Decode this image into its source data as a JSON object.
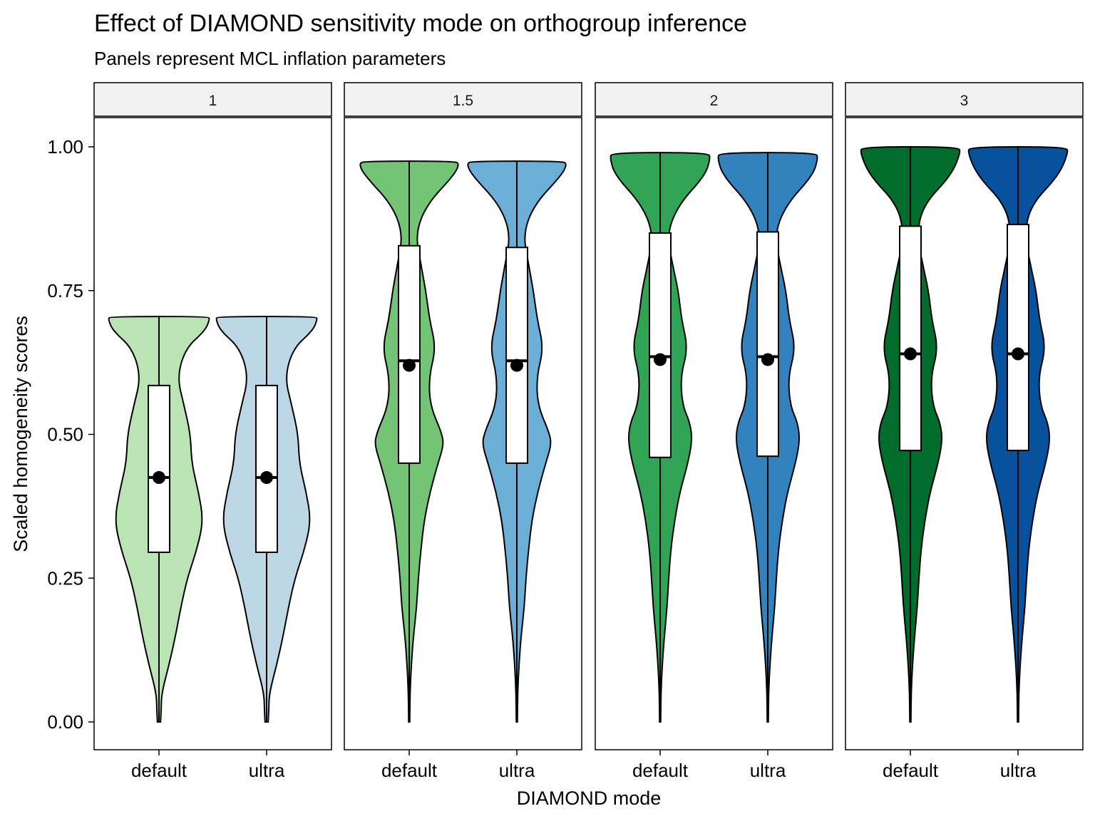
{
  "chart_data": {
    "type": "violin",
    "title": "Effect of DIAMOND sensitivity mode on orthogroup inference",
    "subtitle": "Panels represent MCL inflation parameters",
    "xlabel": "DIAMOND mode",
    "ylabel": "Scaled homogeneity scores",
    "categories": [
      "default",
      "ultra"
    ],
    "ylim": [
      -0.05,
      1.08
    ],
    "yticks": [
      0,
      0.25,
      0.5,
      0.75,
      1
    ],
    "ytick_labels": [
      "0.00",
      "0.25",
      "0.50",
      "0.75",
      "1.00"
    ],
    "grid": false,
    "legend": "none",
    "panels": [
      {
        "label": "1",
        "groups": [
          {
            "category": "default",
            "color": "#bae4b3",
            "min": 0.0,
            "max": 0.705,
            "q1": 0.295,
            "median": 0.425,
            "q3": 0.585,
            "mean": 0.425,
            "density": [
              [
                0.0,
                0.03
              ],
              [
                0.02,
                0.04
              ],
              [
                0.05,
                0.05
              ],
              [
                0.1,
                0.19
              ],
              [
                0.15,
                0.31
              ],
              [
                0.2,
                0.41
              ],
              [
                0.25,
                0.53
              ],
              [
                0.3,
                0.71
              ],
              [
                0.35,
                0.83
              ],
              [
                0.4,
                0.74
              ],
              [
                0.45,
                0.61
              ],
              [
                0.5,
                0.59
              ],
              [
                0.55,
                0.47
              ],
              [
                0.6,
                0.34
              ],
              [
                0.65,
                0.5
              ],
              [
                0.68,
                0.86
              ],
              [
                0.7,
                0.95
              ],
              [
                0.705,
                0.92
              ]
            ]
          },
          {
            "category": "ultra",
            "color": "#bdd7e7",
            "min": 0.0,
            "max": 0.705,
            "q1": 0.295,
            "median": 0.425,
            "q3": 0.585,
            "mean": 0.425,
            "density": [
              [
                0.0,
                0.03
              ],
              [
                0.02,
                0.04
              ],
              [
                0.05,
                0.05
              ],
              [
                0.1,
                0.19
              ],
              [
                0.15,
                0.31
              ],
              [
                0.2,
                0.41
              ],
              [
                0.25,
                0.53
              ],
              [
                0.3,
                0.71
              ],
              [
                0.35,
                0.83
              ],
              [
                0.4,
                0.74
              ],
              [
                0.45,
                0.61
              ],
              [
                0.5,
                0.59
              ],
              [
                0.55,
                0.47
              ],
              [
                0.6,
                0.34
              ],
              [
                0.65,
                0.5
              ],
              [
                0.68,
                0.86
              ],
              [
                0.7,
                0.95
              ],
              [
                0.705,
                0.92
              ]
            ]
          }
        ]
      },
      {
        "label": "1.5",
        "groups": [
          {
            "category": "default",
            "color": "#74c476",
            "min": 0.0,
            "max": 0.975,
            "q1": 0.45,
            "median": 0.628,
            "q3": 0.828,
            "mean": 0.62,
            "density": [
              [
                0.0,
                0.01
              ],
              [
                0.05,
                0.015
              ],
              [
                0.1,
                0.04
              ],
              [
                0.15,
                0.08
              ],
              [
                0.2,
                0.14
              ],
              [
                0.25,
                0.17
              ],
              [
                0.3,
                0.22
              ],
              [
                0.35,
                0.28
              ],
              [
                0.4,
                0.39
              ],
              [
                0.45,
                0.54
              ],
              [
                0.48,
                0.64
              ],
              [
                0.5,
                0.62
              ],
              [
                0.55,
                0.39
              ],
              [
                0.6,
                0.37
              ],
              [
                0.65,
                0.5
              ],
              [
                0.7,
                0.38
              ],
              [
                0.75,
                0.31
              ],
              [
                0.8,
                0.21
              ],
              [
                0.85,
                0.12
              ],
              [
                0.9,
                0.33
              ],
              [
                0.95,
                0.83
              ],
              [
                0.97,
                0.94
              ],
              [
                0.975,
                0.85
              ]
            ]
          },
          {
            "category": "ultra",
            "color": "#6baed6",
            "min": 0.0,
            "max": 0.975,
            "q1": 0.45,
            "median": 0.628,
            "q3": 0.825,
            "mean": 0.62,
            "density": [
              [
                0.0,
                0.01
              ],
              [
                0.05,
                0.015
              ],
              [
                0.1,
                0.04
              ],
              [
                0.15,
                0.08
              ],
              [
                0.2,
                0.14
              ],
              [
                0.25,
                0.17
              ],
              [
                0.3,
                0.22
              ],
              [
                0.35,
                0.28
              ],
              [
                0.4,
                0.39
              ],
              [
                0.45,
                0.54
              ],
              [
                0.48,
                0.64
              ],
              [
                0.5,
                0.62
              ],
              [
                0.55,
                0.39
              ],
              [
                0.6,
                0.37
              ],
              [
                0.65,
                0.5
              ],
              [
                0.7,
                0.38
              ],
              [
                0.75,
                0.31
              ],
              [
                0.8,
                0.21
              ],
              [
                0.85,
                0.12
              ],
              [
                0.9,
                0.33
              ],
              [
                0.95,
                0.83
              ],
              [
                0.97,
                0.94
              ],
              [
                0.975,
                0.85
              ]
            ]
          }
        ]
      },
      {
        "label": "2",
        "groups": [
          {
            "category": "default",
            "color": "#31a354",
            "min": 0.0,
            "max": 0.99,
            "q1": 0.46,
            "median": 0.635,
            "q3": 0.85,
            "mean": 0.63,
            "density": [
              [
                0.0,
                0.01
              ],
              [
                0.05,
                0.015
              ],
              [
                0.1,
                0.04
              ],
              [
                0.15,
                0.08
              ],
              [
                0.2,
                0.13
              ],
              [
                0.25,
                0.16
              ],
              [
                0.3,
                0.2
              ],
              [
                0.35,
                0.27
              ],
              [
                0.4,
                0.37
              ],
              [
                0.45,
                0.52
              ],
              [
                0.49,
                0.6
              ],
              [
                0.52,
                0.56
              ],
              [
                0.55,
                0.42
              ],
              [
                0.6,
                0.38
              ],
              [
                0.65,
                0.52
              ],
              [
                0.7,
                0.4
              ],
              [
                0.75,
                0.34
              ],
              [
                0.8,
                0.22
              ],
              [
                0.85,
                0.13
              ],
              [
                0.9,
                0.35
              ],
              [
                0.95,
                0.84
              ],
              [
                0.98,
                0.94
              ],
              [
                0.99,
                0.9
              ]
            ]
          },
          {
            "category": "ultra",
            "color": "#3182bd",
            "min": 0.0,
            "max": 0.99,
            "q1": 0.462,
            "median": 0.635,
            "q3": 0.852,
            "mean": 0.63,
            "density": [
              [
                0.0,
                0.01
              ],
              [
                0.05,
                0.015
              ],
              [
                0.1,
                0.04
              ],
              [
                0.15,
                0.08
              ],
              [
                0.2,
                0.13
              ],
              [
                0.25,
                0.16
              ],
              [
                0.3,
                0.2
              ],
              [
                0.35,
                0.27
              ],
              [
                0.4,
                0.37
              ],
              [
                0.45,
                0.52
              ],
              [
                0.49,
                0.6
              ],
              [
                0.52,
                0.56
              ],
              [
                0.55,
                0.42
              ],
              [
                0.6,
                0.38
              ],
              [
                0.65,
                0.52
              ],
              [
                0.7,
                0.4
              ],
              [
                0.75,
                0.34
              ],
              [
                0.8,
                0.22
              ],
              [
                0.85,
                0.13
              ],
              [
                0.9,
                0.35
              ],
              [
                0.95,
                0.84
              ],
              [
                0.98,
                0.94
              ],
              [
                0.99,
                0.9
              ]
            ]
          }
        ]
      },
      {
        "label": "3",
        "groups": [
          {
            "category": "default",
            "color": "#006d2c",
            "min": 0.0,
            "max": 1.0,
            "q1": 0.472,
            "median": 0.64,
            "q3": 0.862,
            "mean": 0.64,
            "density": [
              [
                0.0,
                0.01
              ],
              [
                0.05,
                0.015
              ],
              [
                0.1,
                0.04
              ],
              [
                0.15,
                0.08
              ],
              [
                0.2,
                0.13
              ],
              [
                0.25,
                0.16
              ],
              [
                0.3,
                0.2
              ],
              [
                0.35,
                0.27
              ],
              [
                0.4,
                0.37
              ],
              [
                0.45,
                0.52
              ],
              [
                0.49,
                0.6
              ],
              [
                0.52,
                0.56
              ],
              [
                0.55,
                0.42
              ],
              [
                0.6,
                0.38
              ],
              [
                0.65,
                0.52
              ],
              [
                0.7,
                0.4
              ],
              [
                0.75,
                0.34
              ],
              [
                0.8,
                0.22
              ],
              [
                0.85,
                0.12
              ],
              [
                0.9,
                0.25
              ],
              [
                0.95,
                0.76
              ],
              [
                0.99,
                0.94
              ],
              [
                1.0,
                0.9
              ]
            ]
          },
          {
            "category": "ultra",
            "color": "#08519c",
            "min": 0.0,
            "max": 1.0,
            "q1": 0.472,
            "median": 0.64,
            "q3": 0.865,
            "mean": 0.64,
            "density": [
              [
                0.0,
                0.01
              ],
              [
                0.05,
                0.015
              ],
              [
                0.1,
                0.04
              ],
              [
                0.15,
                0.08
              ],
              [
                0.2,
                0.13
              ],
              [
                0.25,
                0.16
              ],
              [
                0.3,
                0.2
              ],
              [
                0.35,
                0.27
              ],
              [
                0.4,
                0.37
              ],
              [
                0.45,
                0.52
              ],
              [
                0.49,
                0.6
              ],
              [
                0.52,
                0.56
              ],
              [
                0.55,
                0.42
              ],
              [
                0.6,
                0.38
              ],
              [
                0.65,
                0.52
              ],
              [
                0.7,
                0.4
              ],
              [
                0.75,
                0.34
              ],
              [
                0.8,
                0.22
              ],
              [
                0.85,
                0.12
              ],
              [
                0.9,
                0.25
              ],
              [
                0.95,
                0.76
              ],
              [
                0.99,
                0.94
              ],
              [
                1.0,
                0.9
              ]
            ]
          }
        ]
      }
    ]
  }
}
